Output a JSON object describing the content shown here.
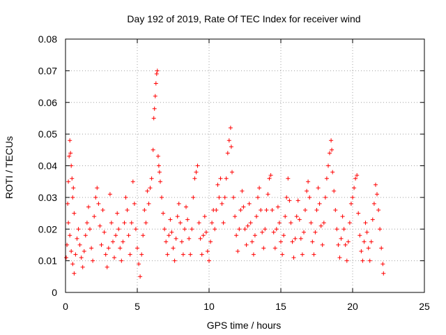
{
  "chart_data": {
    "type": "scatter",
    "title": "Day 192 of 2019, Rate Of TEC Index for receiver wind",
    "xlabel": "GPS time / hours",
    "ylabel": "ROTI / TECUs",
    "xlim": [
      0,
      25
    ],
    "ylim": [
      0,
      0.08
    ],
    "x_ticks": [
      0,
      5,
      10,
      15,
      20,
      25
    ],
    "y_ticks": [
      0,
      0.01,
      0.02,
      0.03,
      0.04,
      0.05,
      0.06,
      0.07,
      0.08
    ],
    "x_tick_labels": [
      "0",
      "5",
      "10",
      "15",
      "20",
      "25"
    ],
    "y_tick_labels": [
      "0",
      "0.01",
      "0.02",
      "0.03",
      "0.04",
      "0.05",
      "0.06",
      "0.07",
      "0.08"
    ],
    "grid": true,
    "marker": "+",
    "marker_color": "#ff0000",
    "series": [
      {
        "points": [
          [
            0.05,
            0.011
          ],
          [
            0.1,
            0.015
          ],
          [
            0.15,
            0.028
          ],
          [
            0.2,
            0.035
          ],
          [
            0.25,
            0.043
          ],
          [
            0.3,
            0.048
          ],
          [
            0.35,
            0.044
          ],
          [
            0.4,
            0.04
          ],
          [
            0.45,
            0.036
          ],
          [
            0.5,
            0.03
          ],
          [
            0.55,
            0.033
          ],
          [
            0.6,
            0.025
          ],
          [
            0.2,
            0.022
          ],
          [
            0.3,
            0.018
          ],
          [
            0.4,
            0.013
          ],
          [
            0.5,
            0.009
          ],
          [
            0.6,
            0.006
          ],
          [
            0.7,
            0.012
          ],
          [
            0.8,
            0.017
          ],
          [
            0.9,
            0.02
          ],
          [
            1.0,
            0.015
          ],
          [
            1.1,
            0.011
          ],
          [
            1.2,
            0.008
          ],
          [
            1.3,
            0.013
          ],
          [
            1.4,
            0.018
          ],
          [
            1.5,
            0.022
          ],
          [
            1.6,
            0.027
          ],
          [
            1.7,
            0.02
          ],
          [
            1.8,
            0.014
          ],
          [
            1.9,
            0.01
          ],
          [
            2.0,
            0.024
          ],
          [
            2.1,
            0.03
          ],
          [
            2.2,
            0.033
          ],
          [
            2.3,
            0.028
          ],
          [
            2.4,
            0.021
          ],
          [
            2.5,
            0.015
          ],
          [
            2.6,
            0.026
          ],
          [
            2.7,
            0.019
          ],
          [
            2.8,
            0.012
          ],
          [
            2.9,
            0.008
          ],
          [
            3.0,
            0.014
          ],
          [
            3.1,
            0.031
          ],
          [
            3.2,
            0.022
          ],
          [
            3.3,
            0.016
          ],
          [
            3.4,
            0.011
          ],
          [
            3.5,
            0.018
          ],
          [
            3.6,
            0.025
          ],
          [
            3.7,
            0.02
          ],
          [
            3.8,
            0.014
          ],
          [
            3.9,
            0.01
          ],
          [
            4.0,
            0.016
          ],
          [
            4.1,
            0.022
          ],
          [
            4.2,
            0.03
          ],
          [
            4.3,
            0.026
          ],
          [
            4.4,
            0.018
          ],
          [
            4.5,
            0.012
          ],
          [
            4.6,
            0.022
          ],
          [
            4.7,
            0.035
          ],
          [
            4.8,
            0.028
          ],
          [
            4.9,
            0.02
          ],
          [
            5.0,
            0.014
          ],
          [
            5.1,
            0.009
          ],
          [
            5.2,
            0.005
          ],
          [
            5.3,
            0.012
          ],
          [
            5.4,
            0.018
          ],
          [
            5.5,
            0.026
          ],
          [
            5.6,
            0.022
          ],
          [
            5.7,
            0.032
          ],
          [
            5.8,
            0.028
          ],
          [
            5.9,
            0.033
          ],
          [
            6.0,
            0.036
          ],
          [
            6.1,
            0.045
          ],
          [
            6.15,
            0.055
          ],
          [
            6.2,
            0.058
          ],
          [
            6.25,
            0.062
          ],
          [
            6.3,
            0.066
          ],
          [
            6.35,
            0.069
          ],
          [
            6.4,
            0.07
          ],
          [
            6.45,
            0.043
          ],
          [
            6.5,
            0.04
          ],
          [
            6.55,
            0.038
          ],
          [
            6.6,
            0.035
          ],
          [
            6.7,
            0.03
          ],
          [
            6.8,
            0.025
          ],
          [
            6.9,
            0.02
          ],
          [
            7.0,
            0.016
          ],
          [
            7.1,
            0.012
          ],
          [
            7.2,
            0.018
          ],
          [
            7.3,
            0.023
          ],
          [
            7.4,
            0.019
          ],
          [
            7.5,
            0.014
          ],
          [
            7.6,
            0.01
          ],
          [
            7.7,
            0.017
          ],
          [
            7.8,
            0.024
          ],
          [
            7.9,
            0.028
          ],
          [
            8.0,
            0.022
          ],
          [
            8.1,
            0.016
          ],
          [
            8.2,
            0.012
          ],
          [
            8.3,
            0.02
          ],
          [
            8.4,
            0.027
          ],
          [
            8.5,
            0.023
          ],
          [
            8.6,
            0.017
          ],
          [
            8.7,
            0.012
          ],
          [
            8.8,
            0.02
          ],
          [
            8.9,
            0.03
          ],
          [
            9.0,
            0.036
          ],
          [
            9.1,
            0.038
          ],
          [
            9.2,
            0.04
          ],
          [
            9.3,
            0.022
          ],
          [
            9.4,
            0.017
          ],
          [
            9.5,
            0.012
          ],
          [
            9.6,
            0.018
          ],
          [
            9.7,
            0.024
          ],
          [
            9.8,
            0.019
          ],
          [
            9.9,
            0.013
          ],
          [
            10.0,
            0.01
          ],
          [
            10.1,
            0.016
          ],
          [
            10.2,
            0.022
          ],
          [
            10.3,
            0.026
          ],
          [
            10.4,
            0.02
          ],
          [
            10.5,
            0.026
          ],
          [
            10.6,
            0.034
          ],
          [
            10.7,
            0.03
          ],
          [
            10.8,
            0.036
          ],
          [
            10.9,
            0.028
          ],
          [
            11.0,
            0.022
          ],
          [
            11.1,
            0.03
          ],
          [
            11.2,
            0.036
          ],
          [
            11.3,
            0.044
          ],
          [
            11.4,
            0.048
          ],
          [
            11.5,
            0.052
          ],
          [
            11.55,
            0.046
          ],
          [
            11.6,
            0.038
          ],
          [
            11.7,
            0.03
          ],
          [
            11.8,
            0.024
          ],
          [
            11.9,
            0.018
          ],
          [
            12.0,
            0.013
          ],
          [
            12.1,
            0.02
          ],
          [
            12.2,
            0.026
          ],
          [
            12.3,
            0.032
          ],
          [
            12.4,
            0.027
          ],
          [
            12.5,
            0.02
          ],
          [
            12.6,
            0.015
          ],
          [
            12.7,
            0.021
          ],
          [
            12.8,
            0.028
          ],
          [
            12.9,
            0.022
          ],
          [
            13.0,
            0.016
          ],
          [
            13.1,
            0.012
          ],
          [
            13.2,
            0.018
          ],
          [
            13.3,
            0.024
          ],
          [
            13.4,
            0.03
          ],
          [
            13.5,
            0.033
          ],
          [
            13.6,
            0.026
          ],
          [
            13.7,
            0.019
          ],
          [
            13.8,
            0.014
          ],
          [
            13.9,
            0.02
          ],
          [
            14.0,
            0.026
          ],
          [
            14.1,
            0.031
          ],
          [
            14.2,
            0.036
          ],
          [
            14.3,
            0.037
          ],
          [
            14.4,
            0.026
          ],
          [
            14.5,
            0.019
          ],
          [
            14.6,
            0.014
          ],
          [
            14.7,
            0.02
          ],
          [
            14.8,
            0.027
          ],
          [
            14.9,
            0.022
          ],
          [
            15.0,
            0.016
          ],
          [
            15.1,
            0.012
          ],
          [
            15.2,
            0.018
          ],
          [
            15.3,
            0.024
          ],
          [
            15.4,
            0.03
          ],
          [
            15.5,
            0.036
          ],
          [
            15.6,
            0.029
          ],
          [
            15.7,
            0.022
          ],
          [
            15.8,
            0.016
          ],
          [
            15.9,
            0.011
          ],
          [
            16.0,
            0.017
          ],
          [
            16.1,
            0.024
          ],
          [
            16.2,
            0.029
          ],
          [
            16.3,
            0.023
          ],
          [
            16.4,
            0.017
          ],
          [
            16.5,
            0.012
          ],
          [
            16.6,
            0.019
          ],
          [
            16.7,
            0.026
          ],
          [
            16.8,
            0.032
          ],
          [
            16.9,
            0.035
          ],
          [
            17.0,
            0.03
          ],
          [
            17.1,
            0.022
          ],
          [
            17.2,
            0.016
          ],
          [
            17.3,
            0.012
          ],
          [
            17.4,
            0.019
          ],
          [
            17.5,
            0.026
          ],
          [
            17.6,
            0.033
          ],
          [
            17.7,
            0.028
          ],
          [
            17.8,
            0.021
          ],
          [
            17.9,
            0.015
          ],
          [
            18.0,
            0.022
          ],
          [
            18.1,
            0.03
          ],
          [
            18.2,
            0.036
          ],
          [
            18.3,
            0.04
          ],
          [
            18.4,
            0.044
          ],
          [
            18.5,
            0.048
          ],
          [
            18.55,
            0.045
          ],
          [
            18.6,
            0.038
          ],
          [
            18.7,
            0.032
          ],
          [
            18.8,
            0.026
          ],
          [
            18.9,
            0.02
          ],
          [
            19.0,
            0.015
          ],
          [
            19.1,
            0.011
          ],
          [
            19.2,
            0.017
          ],
          [
            19.3,
            0.024
          ],
          [
            19.4,
            0.02
          ],
          [
            19.5,
            0.015
          ],
          [
            19.6,
            0.01
          ],
          [
            19.7,
            0.016
          ],
          [
            19.8,
            0.022
          ],
          [
            19.9,
            0.028
          ],
          [
            20.0,
            0.03
          ],
          [
            20.1,
            0.033
          ],
          [
            20.2,
            0.036
          ],
          [
            20.3,
            0.037
          ],
          [
            20.4,
            0.025
          ],
          [
            20.5,
            0.018
          ],
          [
            20.6,
            0.013
          ],
          [
            20.7,
            0.01
          ],
          [
            20.8,
            0.016
          ],
          [
            20.9,
            0.022
          ],
          [
            21.0,
            0.019
          ],
          [
            21.1,
            0.014
          ],
          [
            21.2,
            0.01
          ],
          [
            21.3,
            0.016
          ],
          [
            21.4,
            0.023
          ],
          [
            21.5,
            0.028
          ],
          [
            21.6,
            0.034
          ],
          [
            21.7,
            0.031
          ],
          [
            21.8,
            0.026
          ],
          [
            21.9,
            0.02
          ],
          [
            22.0,
            0.014
          ],
          [
            22.1,
            0.009
          ],
          [
            22.15,
            0.006
          ]
        ]
      }
    ]
  }
}
